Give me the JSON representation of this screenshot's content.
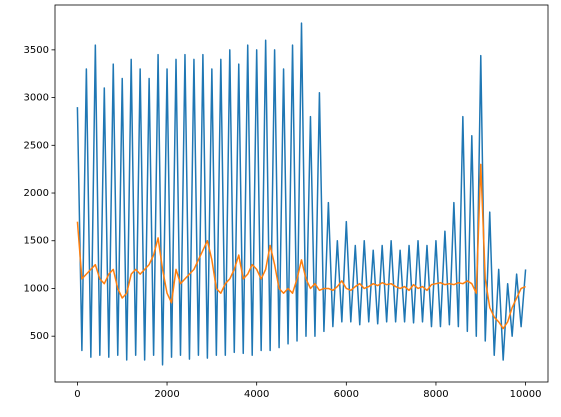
{
  "chart_data": {
    "type": "line",
    "x": [
      0,
      100,
      200,
      300,
      400,
      500,
      600,
      700,
      800,
      900,
      1000,
      1100,
      1200,
      1300,
      1400,
      1500,
      1600,
      1700,
      1800,
      1900,
      2000,
      2100,
      2200,
      2300,
      2400,
      2500,
      2600,
      2700,
      2800,
      2900,
      3000,
      3100,
      3200,
      3300,
      3400,
      3500,
      3600,
      3700,
      3800,
      3900,
      4000,
      4100,
      4200,
      4300,
      4400,
      4500,
      4600,
      4700,
      4800,
      4900,
      5000,
      5100,
      5200,
      5300,
      5400,
      5500,
      5600,
      5700,
      5800,
      5900,
      6000,
      6100,
      6200,
      6300,
      6400,
      6500,
      6600,
      6700,
      6800,
      6900,
      7000,
      7100,
      7200,
      7300,
      7400,
      7500,
      7600,
      7700,
      7800,
      7900,
      8000,
      8100,
      8200,
      8300,
      8400,
      8500,
      8600,
      8700,
      8800,
      8900,
      9000,
      9100,
      9200,
      9300,
      9400,
      9500,
      9600,
      9700,
      9800,
      9900,
      10000
    ],
    "series": [
      {
        "color": "#1f77b4",
        "values": [
          2900,
          350,
          3300,
          280,
          3550,
          300,
          3100,
          280,
          3350,
          300,
          3200,
          250,
          3400,
          300,
          3300,
          250,
          3200,
          300,
          3450,
          200,
          3300,
          280,
          3400,
          300,
          3450,
          260,
          3400,
          300,
          3450,
          270,
          3300,
          300,
          3400,
          300,
          3500,
          330,
          3350,
          320,
          3550,
          300,
          3500,
          350,
          3600,
          350,
          3500,
          380,
          3300,
          420,
          3550,
          450,
          3780,
          500,
          2800,
          500,
          3050,
          550,
          1900,
          600,
          1500,
          650,
          1700,
          650,
          1450,
          620,
          1500,
          650,
          1400,
          630,
          1450,
          650,
          1500,
          650,
          1400,
          650,
          1450,
          640,
          1500,
          650,
          1450,
          600,
          1500,
          600,
          1600,
          620,
          1900,
          600,
          2800,
          550,
          2600,
          500,
          3440,
          450,
          1800,
          300,
          1200,
          250,
          1050,
          500,
          1150,
          600,
          1200
        ]
      },
      {
        "color": "#ff7f0e",
        "values": [
          1700,
          1100,
          1150,
          1200,
          1250,
          1100,
          1050,
          1150,
          1200,
          1000,
          900,
          950,
          1150,
          1200,
          1150,
          1200,
          1250,
          1350,
          1530,
          1200,
          950,
          850,
          1200,
          1050,
          1100,
          1150,
          1200,
          1300,
          1400,
          1500,
          1300,
          1000,
          950,
          1050,
          1100,
          1200,
          1350,
          1100,
          1150,
          1250,
          1200,
          1100,
          1200,
          1450,
          1250,
          1000,
          950,
          1000,
          950,
          1100,
          1300,
          1100,
          1000,
          1050,
          980,
          1000,
          1000,
          980,
          1020,
          1080,
          1000,
          980,
          1020,
          1050,
          1000,
          1020,
          1050,
          1030,
          1060,
          1040,
          1050,
          1020,
          1000,
          1020,
          980,
          1040,
          1000,
          1020,
          980,
          1040,
          1050,
          1060,
          1040,
          1050,
          1040,
          1060,
          1050,
          1080,
          1050,
          950,
          2300,
          1100,
          800,
          700,
          650,
          580,
          650,
          800,
          900,
          1000,
          1020
        ]
      }
    ],
    "xlim": [
      -500,
      10500
    ],
    "ylim": [
      20,
      3970
    ],
    "xticks": [
      0,
      2000,
      4000,
      6000,
      8000,
      10000
    ],
    "yticks": [
      500,
      1000,
      1500,
      2000,
      2500,
      3000,
      3500
    ]
  }
}
